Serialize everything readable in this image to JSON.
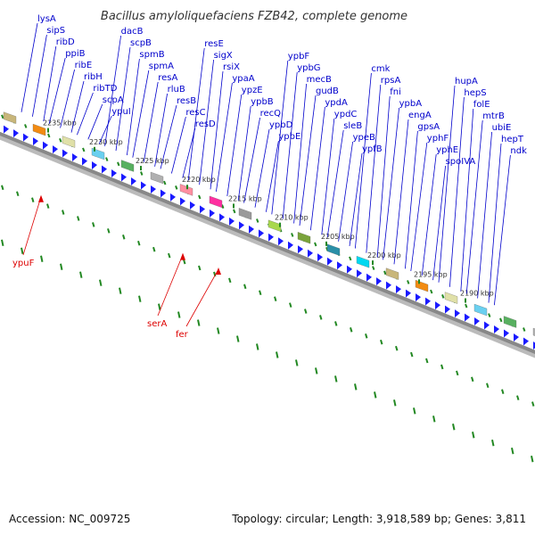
{
  "title": "Bacillus amyloliquefaciens FZB42, complete genome",
  "footer": {
    "accession": "Accession: NC_009725",
    "summary": "Topology: circular; Length: 3,918,589 bp; Genes: 3,811"
  },
  "colors": {
    "forward_label": "#0000cc",
    "reverse_label": "#dd0000",
    "backbone": "#888888",
    "tick": "#228822",
    "cds_arrow": "#1a1aff"
  },
  "kbp_markers": [
    "2235 kbp",
    "2230 kbp",
    "2225 kbp",
    "2220 kbp",
    "2215 kbp",
    "2210 kbp",
    "2205 kbp",
    "2200 kbp",
    "2195 kbp",
    "2190 kbp"
  ],
  "forward_genes": [
    "lysA",
    "sipS",
    "ribD",
    "ppiB",
    "ribE",
    "ribH",
    "ribTD",
    "scpA",
    "ypuI",
    "dacB",
    "scpB",
    "spmB",
    "spmA",
    "resA",
    "rluB",
    "resB",
    "resC",
    "resD",
    "resE",
    "sigX",
    "rsiX",
    "ypaA",
    "ypzE",
    "ypbB",
    "recQ",
    "ypbD",
    "ypbE",
    "ypbF",
    "ypbG",
    "mecB",
    "gudB",
    "ypdA",
    "ypdC",
    "sleB",
    "ypeB",
    "ypfB",
    "cmk",
    "rpsA",
    "fni",
    "ypbA",
    "engA",
    "gpsA",
    "yphF",
    "yphE",
    "spoIVA",
    "hupA",
    "hepS",
    "folE",
    "mtrB",
    "ubiE",
    "hepT",
    "ndk"
  ],
  "reverse_genes": [
    "ypuF",
    "serA",
    "fer"
  ]
}
